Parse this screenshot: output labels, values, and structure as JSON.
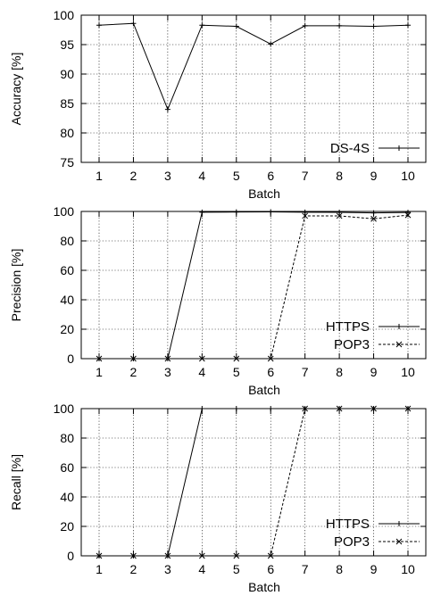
{
  "chart_data": [
    {
      "type": "line",
      "title": "",
      "xlabel": "Batch",
      "ylabel": "Accuracy [%]",
      "categories": [
        1,
        2,
        3,
        4,
        5,
        6,
        7,
        8,
        9,
        10
      ],
      "ylim": [
        75,
        100
      ],
      "yticks": [
        75,
        80,
        85,
        90,
        95,
        100
      ],
      "grid": true,
      "legend_position": "bottom-right",
      "series": [
        {
          "name": "DS-4S",
          "marker": "plus",
          "style": "solid",
          "values": [
            98.3,
            98.6,
            84.0,
            98.3,
            98.1,
            95.1,
            98.2,
            98.2,
            98.1,
            98.3
          ]
        }
      ]
    },
    {
      "type": "line",
      "title": "",
      "xlabel": "Batch",
      "ylabel": "Precision [%]",
      "categories": [
        1,
        2,
        3,
        4,
        5,
        6,
        7,
        8,
        9,
        10
      ],
      "ylim": [
        0,
        100
      ],
      "yticks": [
        0,
        20,
        40,
        60,
        80,
        100
      ],
      "grid": true,
      "legend_position": "bottom-right",
      "series": [
        {
          "name": "HTTPS",
          "marker": "plus",
          "style": "solid",
          "values": [
            0,
            0,
            0,
            99.5,
            99.6,
            99.7,
            99.5,
            99.4,
            99.0,
            99.3
          ]
        },
        {
          "name": "POP3",
          "marker": "cross",
          "style": "dashed",
          "values": [
            0,
            0,
            0,
            0,
            0,
            0,
            97.0,
            97.0,
            95.0,
            97.5
          ]
        }
      ]
    },
    {
      "type": "line",
      "title": "",
      "xlabel": "Batch",
      "ylabel": "Recall [%]",
      "categories": [
        1,
        2,
        3,
        4,
        5,
        6,
        7,
        8,
        9,
        10
      ],
      "ylim": [
        0,
        100
      ],
      "yticks": [
        0,
        20,
        40,
        60,
        80,
        100
      ],
      "grid": true,
      "legend_position": "bottom-right",
      "series": [
        {
          "name": "HTTPS",
          "marker": "plus",
          "style": "solid",
          "values": [
            0,
            0,
            0,
            100,
            100,
            100,
            100,
            100,
            100,
            100
          ]
        },
        {
          "name": "POP3",
          "marker": "cross",
          "style": "dashed",
          "values": [
            0,
            0,
            0,
            0,
            0,
            0,
            100,
            100,
            100,
            100
          ]
        }
      ]
    }
  ]
}
